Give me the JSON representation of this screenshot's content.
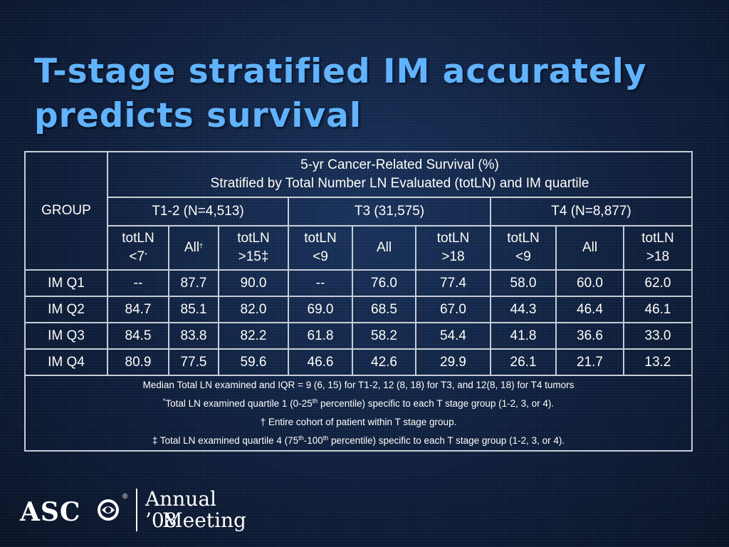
{
  "title": {
    "line1": "T-stage stratified IM accurately",
    "line2": "predicts survival"
  },
  "table": {
    "group_label": "GROUP",
    "header_line1": "5-yr Cancer-Related Survival  (%)",
    "header_line2": "Stratified by Total Number LN Evaluated (totLN) and IM quartile",
    "stage_groups": [
      "T1-2 (N=4,513)",
      "T3 (31,575)",
      "T4 (N=8,877)"
    ],
    "subheaders": [
      {
        "l1": "totLN",
        "l2": "<7",
        "sup": "*"
      },
      {
        "l1": "All",
        "sup": "†"
      },
      {
        "l1": "totLN",
        "l2": ">15‡"
      },
      {
        "l1": "totLN",
        "l2": "<9"
      },
      {
        "l1": "All"
      },
      {
        "l1": "totLN",
        "l2": ">18"
      },
      {
        "l1": "totLN",
        "l2": "<9"
      },
      {
        "l1": "All"
      },
      {
        "l1": "totLN",
        "l2": ">18"
      }
    ],
    "rows": [
      {
        "label": "IM Q1",
        "values": [
          "--",
          "87.7",
          "90.0",
          "--",
          "76.0",
          "77.4",
          "58.0",
          "60.0",
          "62.0"
        ]
      },
      {
        "label": "IM Q2",
        "values": [
          "84.7",
          "85.1",
          "82.0",
          "69.0",
          "68.5",
          "67.0",
          "44.3",
          "46.4",
          "46.1"
        ]
      },
      {
        "label": "IM Q3",
        "values": [
          "84.5",
          "83.8",
          "82.2",
          "61.8",
          "58.2",
          "54.4",
          "41.8",
          "36.6",
          "33.0"
        ]
      },
      {
        "label": "IM Q4",
        "values": [
          "80.9",
          "77.5",
          "59.6",
          "46.6",
          "42.6",
          "29.9",
          "26.1",
          "21.7",
          "13.2"
        ]
      }
    ],
    "notes": {
      "line1": "Median Total LN examined and IQR = 9 (6, 15) for T1-2, 12 (8, 18) for T3, and 12(8, 18) for T4 tumors",
      "line2_sup": "*",
      "line2_a": "Total LN examined quartile 1 (0-25",
      "line2_sup2": "th",
      "line2_b": " percentile) specific to each T stage group (1-2, 3, or 4).",
      "line3": "† Entire cohort of patient within T stage group.",
      "line4_a": "‡ Total LN examined quartile 4 (75",
      "line4_sup1": "th",
      "line4_b": "-100",
      "line4_sup2": "th",
      "line4_c": " percentile) specific to each T stage group (1-2, 3, or 4)."
    }
  },
  "logo": {
    "org": "ASC",
    "registered": "®",
    "annual": "Annual ’08",
    "meeting": "Meeting"
  },
  "colors": {
    "title": "#5fb3ff",
    "background": "#0c1a33",
    "table_border": "#c8ccd4",
    "text": "#ffffff"
  }
}
